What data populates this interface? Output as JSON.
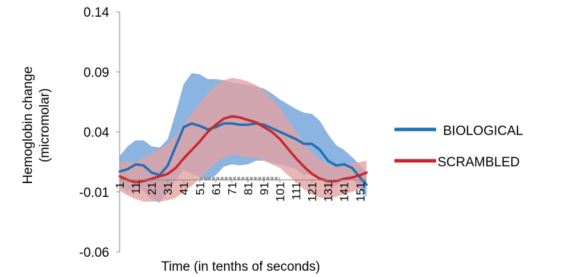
{
  "chart_data": {
    "type": "line",
    "title": "",
    "xlabel": "Time (in tenths of seconds)",
    "ylabel_lines": [
      "Hemoglobin change",
      "(micromolar)"
    ],
    "y_ticks": [
      "0.14",
      "0.09",
      "0.04",
      "-0.01",
      "-0.06"
    ],
    "y_tick_values": [
      0.14,
      0.09,
      0.04,
      -0.01,
      -0.06
    ],
    "ylim": [
      -0.06,
      0.14
    ],
    "xlim": [
      1,
      155
    ],
    "x_ticks": [
      "1",
      "11",
      "21",
      "31",
      "41",
      "51",
      "61",
      "71",
      "81",
      "91",
      "101",
      "111",
      "121",
      "131",
      "141",
      "151"
    ],
    "x_tick_values": [
      1,
      11,
      21,
      31,
      41,
      51,
      61,
      71,
      81,
      91,
      101,
      111,
      121,
      131,
      141,
      151
    ],
    "grid": false,
    "legend_position": "right",
    "stimulus_marker": {
      "x_start": 51,
      "x_end": 101,
      "y": 0.001,
      "color": "#999999"
    },
    "series": [
      {
        "name": "BIOLOGICAL",
        "color": "#1f6fb8",
        "band_color": "#6b9fd8",
        "x": [
          1,
          6,
          11,
          16,
          21,
          26,
          31,
          36,
          41,
          46,
          51,
          56,
          61,
          66,
          71,
          76,
          81,
          86,
          91,
          96,
          101,
          106,
          111,
          116,
          121,
          126,
          131,
          136,
          141,
          146,
          151,
          155
        ],
        "values": [
          0.007,
          0.009,
          0.013,
          0.012,
          0.006,
          0.004,
          0.012,
          0.028,
          0.044,
          0.047,
          0.045,
          0.042,
          0.044,
          0.047,
          0.047,
          0.046,
          0.046,
          0.047,
          0.046,
          0.043,
          0.04,
          0.037,
          0.034,
          0.03,
          0.03,
          0.025,
          0.016,
          0.012,
          0.013,
          0.01,
          0.002,
          -0.004
        ],
        "upper": [
          0.02,
          0.028,
          0.033,
          0.033,
          0.028,
          0.027,
          0.034,
          0.056,
          0.08,
          0.089,
          0.088,
          0.084,
          0.084,
          0.083,
          0.081,
          0.08,
          0.079,
          0.078,
          0.076,
          0.072,
          0.067,
          0.063,
          0.059,
          0.056,
          0.055,
          0.049,
          0.038,
          0.029,
          0.025,
          0.019,
          0.012,
          0.006
        ],
        "lower": [
          -0.006,
          -0.01,
          -0.007,
          -0.009,
          -0.016,
          -0.019,
          -0.01,
          0.0,
          0.008,
          0.005,
          0.002,
          0.0,
          0.004,
          0.011,
          0.013,
          0.012,
          0.013,
          0.016,
          0.016,
          0.014,
          0.013,
          0.011,
          0.009,
          0.004,
          0.005,
          0.001,
          -0.006,
          -0.005,
          0.001,
          0.001,
          -0.008,
          -0.014
        ]
      },
      {
        "name": "SCRAMBLED",
        "color": "#c8262c",
        "band_color": "#e4a0a0",
        "x": [
          1,
          6,
          11,
          16,
          21,
          26,
          31,
          36,
          41,
          46,
          51,
          56,
          61,
          66,
          71,
          76,
          81,
          86,
          91,
          96,
          101,
          106,
          111,
          116,
          121,
          126,
          131,
          136,
          141,
          146,
          151,
          155
        ],
        "values": [
          0.003,
          0.0,
          -0.002,
          -0.001,
          0.001,
          0.003,
          0.005,
          0.01,
          0.018,
          0.025,
          0.032,
          0.04,
          0.046,
          0.051,
          0.053,
          0.052,
          0.05,
          0.048,
          0.044,
          0.04,
          0.034,
          0.026,
          0.018,
          0.011,
          0.005,
          0.001,
          -0.001,
          -0.001,
          0.001,
          0.002,
          0.004,
          0.006
        ],
        "upper": [
          0.015,
          0.015,
          0.015,
          0.018,
          0.022,
          0.026,
          0.03,
          0.037,
          0.046,
          0.055,
          0.064,
          0.072,
          0.079,
          0.083,
          0.085,
          0.084,
          0.082,
          0.079,
          0.074,
          0.068,
          0.06,
          0.05,
          0.04,
          0.031,
          0.023,
          0.017,
          0.013,
          0.012,
          0.013,
          0.014,
          0.015,
          0.016
        ],
        "lower": [
          -0.009,
          -0.013,
          -0.016,
          -0.018,
          -0.018,
          -0.018,
          -0.017,
          -0.015,
          -0.01,
          -0.005,
          0.001,
          0.008,
          0.014,
          0.019,
          0.021,
          0.02,
          0.019,
          0.018,
          0.016,
          0.013,
          0.01,
          0.004,
          -0.002,
          -0.008,
          -0.012,
          -0.015,
          -0.015,
          -0.014,
          -0.012,
          -0.01,
          -0.007,
          -0.004
        ]
      }
    ]
  }
}
